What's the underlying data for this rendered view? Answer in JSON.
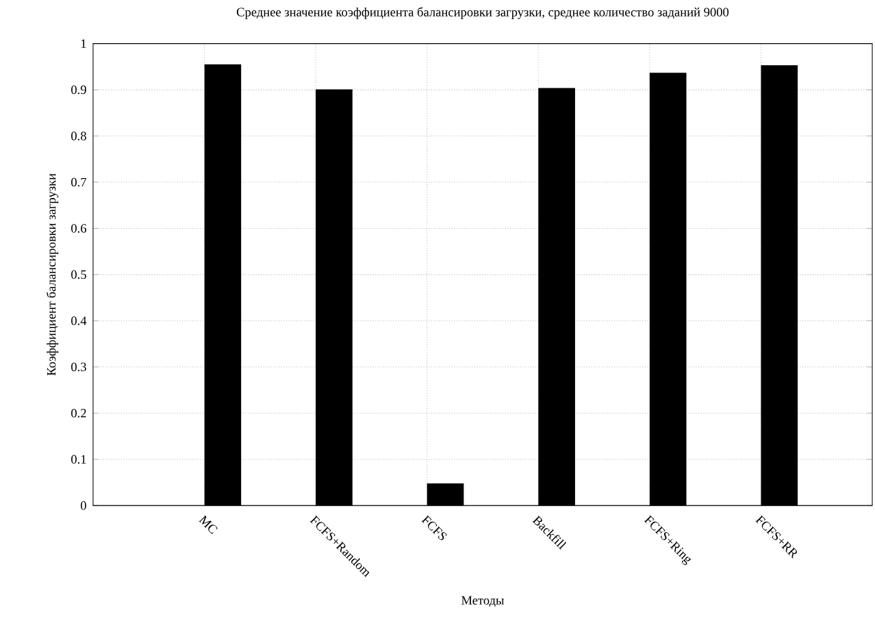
{
  "chart_data": {
    "type": "bar",
    "title": "Среднее значение коэффициента балансировки загрузки, среднее количество заданий 9000",
    "xlabel": "Методы",
    "ylabel": "Коэффициент балансировки загрузки",
    "categories": [
      "MC",
      "FCFS+Random",
      "FCFS",
      "Backfill",
      "FCFS+Ring",
      "FCFS+RR"
    ],
    "values": [
      0.955,
      0.901,
      0.048,
      0.904,
      0.937,
      0.953
    ],
    "color": "#000000",
    "ylim": [
      0,
      1
    ],
    "yticks": [
      0,
      0.1,
      0.2,
      0.3,
      0.4,
      0.5,
      0.6,
      0.7,
      0.8,
      0.9,
      1
    ],
    "grid": true
  }
}
